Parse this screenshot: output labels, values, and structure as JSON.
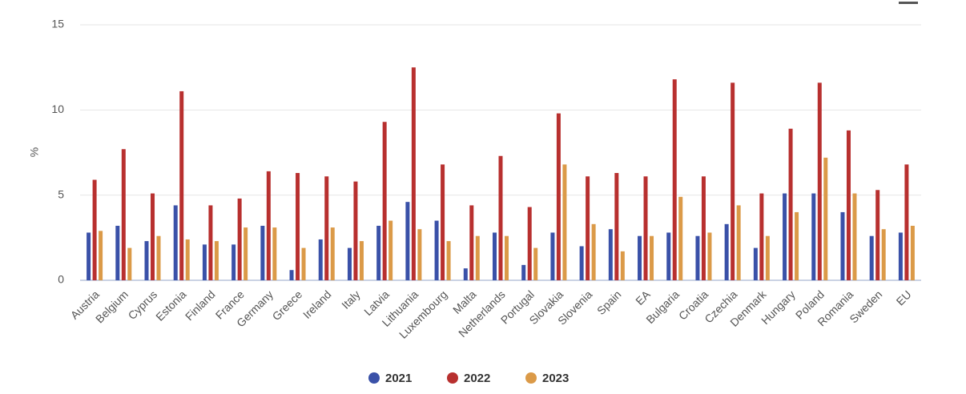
{
  "chart_data": {
    "type": "bar",
    "y_label": "%",
    "categories": [
      "Austria",
      "Belgium",
      "Cyprus",
      "Estonia",
      "Finland",
      "France",
      "Germany",
      "Greece",
      "Ireland",
      "Italy",
      "Latvia",
      "Lithuania",
      "Luxembourg",
      "Malta",
      "Netherlands",
      "Portugal",
      "Slovakia",
      "Slovenia",
      "Spain",
      "EA",
      "Bulgaria",
      "Croatia",
      "Czechia",
      "Denmark",
      "Hungary",
      "Poland",
      "Romania",
      "Sweden",
      "EU"
    ],
    "series": [
      {
        "name": "2021",
        "color": "#3a51a8",
        "values": [
          2.8,
          3.2,
          2.3,
          4.4,
          2.1,
          2.1,
          3.2,
          0.6,
          2.4,
          1.9,
          3.2,
          4.6,
          3.5,
          0.7,
          2.8,
          0.9,
          2.8,
          2.0,
          3.0,
          2.6,
          2.8,
          2.6,
          3.3,
          1.9,
          5.1,
          5.1,
          4.0,
          2.6,
          2.8
        ]
      },
      {
        "name": "2022",
        "color": "#b8302f",
        "values": [
          5.9,
          7.7,
          5.1,
          11.1,
          4.4,
          4.8,
          6.4,
          6.3,
          6.1,
          5.8,
          9.3,
          12.5,
          6.8,
          4.4,
          7.3,
          4.3,
          9.8,
          6.1,
          6.3,
          6.1,
          11.8,
          6.1,
          11.6,
          5.1,
          8.9,
          11.6,
          8.8,
          5.3,
          6.8
        ]
      },
      {
        "name": "2023",
        "color": "#db9a48",
        "values": [
          2.9,
          1.9,
          2.6,
          2.4,
          2.3,
          3.1,
          3.1,
          1.9,
          3.1,
          2.3,
          3.5,
          3.0,
          2.3,
          2.6,
          2.6,
          1.9,
          6.8,
          3.3,
          1.7,
          2.6,
          4.9,
          2.8,
          4.4,
          2.6,
          4.0,
          7.2,
          5.1,
          3.0,
          3.2
        ]
      }
    ],
    "ylim": [
      0,
      15
    ],
    "yticks": [
      0,
      5,
      10,
      15
    ],
    "grid": true
  }
}
